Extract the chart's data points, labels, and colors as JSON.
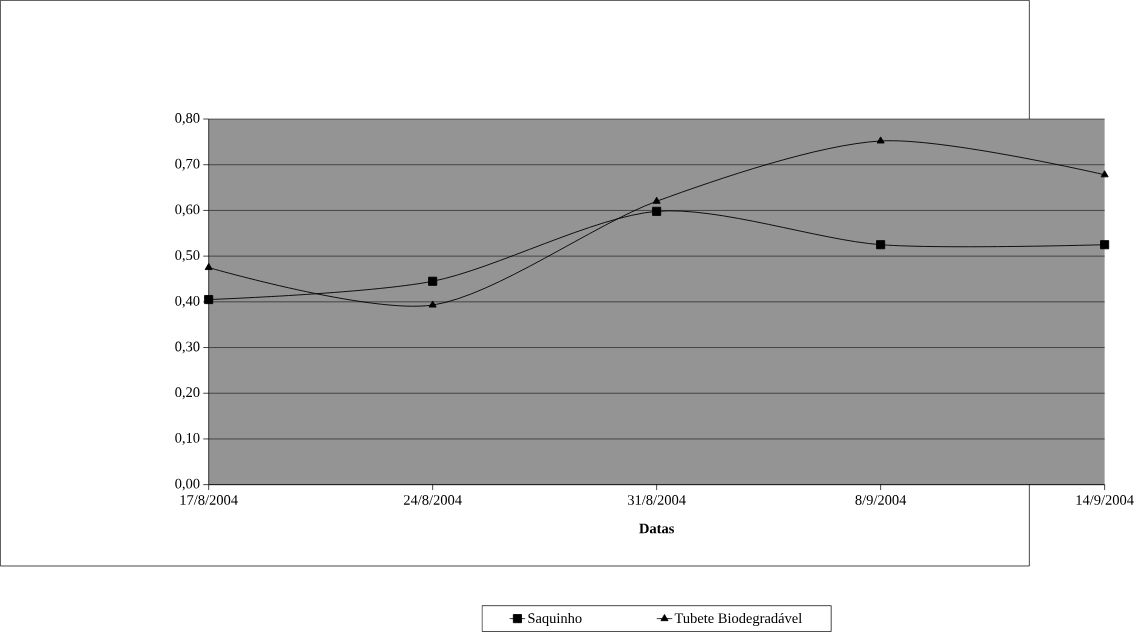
{
  "chart_data": {
    "type": "line",
    "xlabel": "Datas",
    "categories": [
      "17/8/2004",
      "24/8/2004",
      "31/8/2004",
      "8/9/2004",
      "14/9/2004"
    ],
    "series": [
      {
        "name": "Saquinho",
        "color": "#000000",
        "marker": "square",
        "values": [
          0.405,
          0.445,
          0.598,
          0.525,
          0.525
        ]
      },
      {
        "name": "Tubete Biodegradável",
        "color": "#000000",
        "marker": "triangle",
        "values": [
          0.475,
          0.393,
          0.62,
          0.752,
          0.678
        ]
      }
    ],
    "ylim": [
      0,
      0.8
    ],
    "yticks": [
      {
        "value": 0,
        "label": "0,00"
      },
      {
        "value": 0.1,
        "label": "0,10"
      },
      {
        "value": 0.2,
        "label": "0,20"
      },
      {
        "value": 0.3,
        "label": "0,30"
      },
      {
        "value": 0.4,
        "label": "0,40"
      },
      {
        "value": 0.5,
        "label": "0,50"
      },
      {
        "value": 0.6,
        "label": "0,60"
      },
      {
        "value": 0.7,
        "label": "0,70"
      },
      {
        "value": 0.8,
        "label": "0,80"
      }
    ],
    "grid": "y",
    "legend": "bottom",
    "line_style": "solid"
  }
}
